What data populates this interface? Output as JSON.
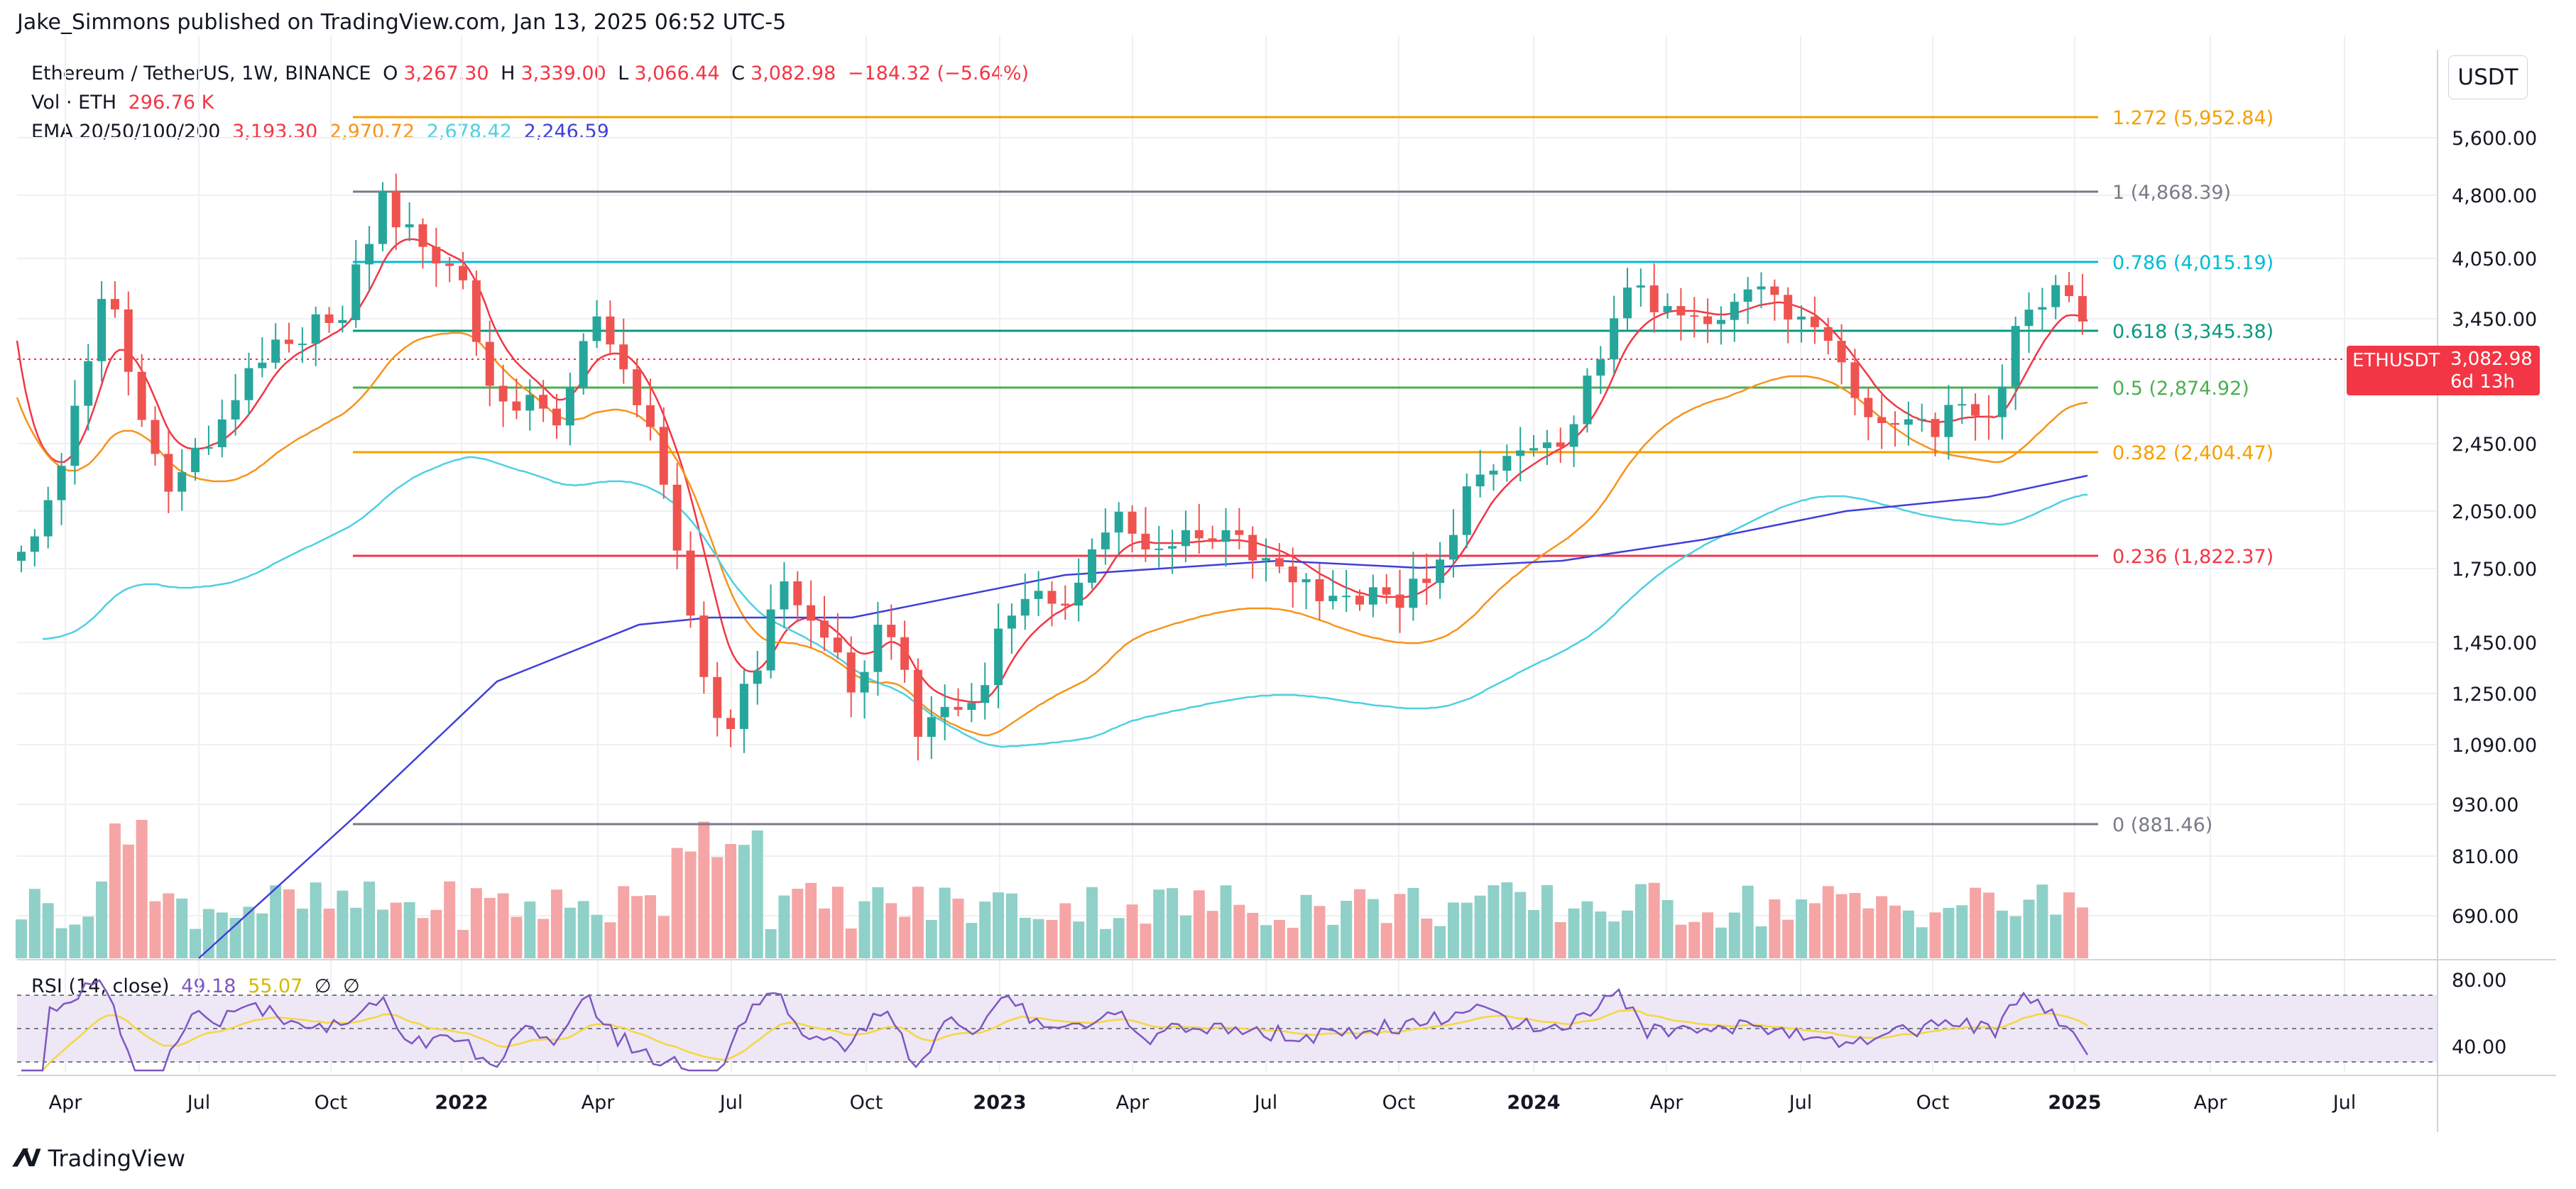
{
  "header": {
    "publisher": "Jake_Simmons published on TradingView.com, Jan 13, 2025 06:52 UTC-5"
  },
  "symbol": {
    "name": "Ethereum / TetherUS, 1W, BINANCE",
    "o_label": "O",
    "o": "3,267.30",
    "h_label": "H",
    "h": "3,339.00",
    "l_label": "L",
    "l": "3,066.44",
    "c_label": "C",
    "c": "3,082.98",
    "change": "−184.32 (−5.64%)"
  },
  "volume": {
    "label": "Vol · ETH",
    "value": "296.76 K"
  },
  "ema": {
    "label": "EMA 20/50/100/200",
    "values": [
      "3,193.30",
      "2,970.72",
      "2,678.42",
      "2,246.59"
    ]
  },
  "rsi": {
    "label": "RSI (14, close)",
    "value": "49.18",
    "ma": "55.07",
    "extra": [
      "∅",
      "∅"
    ]
  },
  "price_axis": {
    "unit": "USDT",
    "labels": [
      "5,600.00",
      "4,800.00",
      "4,050.00",
      "3,450.00",
      "2,450.00",
      "2,050.00",
      "1,750.00",
      "1,450.00",
      "1,250.00",
      "1,090.00",
      "930.00",
      "810.00",
      "690.00"
    ]
  },
  "rsi_axis": {
    "labels": [
      "80.00",
      "40.00"
    ]
  },
  "time_axis": {
    "labels": [
      "Apr",
      "Jul",
      "Oct",
      "2022",
      "Apr",
      "Jul",
      "Oct",
      "2023",
      "Apr",
      "Jul",
      "Oct",
      "2024",
      "Apr",
      "Jul",
      "Oct",
      "2025",
      "Apr",
      "Jul"
    ]
  },
  "current_price": {
    "symbol": "ETHUSDT",
    "value": "3,082.98",
    "countdown": "6d 13h",
    "color": "#f23645"
  },
  "fib_levels": [
    {
      "ratio": "1.272",
      "label": "1.272 (5,952.84)",
      "color": "#f59f00"
    },
    {
      "ratio": "1",
      "label": "1 (4,868.39)",
      "color": "#787b86"
    },
    {
      "ratio": "0.786",
      "label": "0.786 (4,015.19)",
      "color": "#00bcd4"
    },
    {
      "ratio": "0.618",
      "label": "0.618 (3,345.38)",
      "color": "#089981"
    },
    {
      "ratio": "0.5",
      "label": "0.5 (2,874.92)",
      "color": "#4caf50"
    },
    {
      "ratio": "0.382",
      "label": "0.382 (2,404.47)",
      "color": "#f59f00"
    },
    {
      "ratio": "0.236",
      "label": "0.236 (1,822.37)",
      "color": "#f23645"
    },
    {
      "ratio": "0",
      "label": "0 (881.46)",
      "color": "#787b86"
    }
  ],
  "colors": {
    "up": "#26a69a",
    "down": "#ef5350",
    "ema20": "#f23645",
    "ema50": "#f7931a",
    "ema100": "#4dd0e1",
    "ema200": "#3f3fd9",
    "rsi": "#7e57c2",
    "rsi_ma": "#f5d742"
  },
  "footer": {
    "brand": "TradingView",
    "icon": "tradingview-logo-icon"
  }
}
